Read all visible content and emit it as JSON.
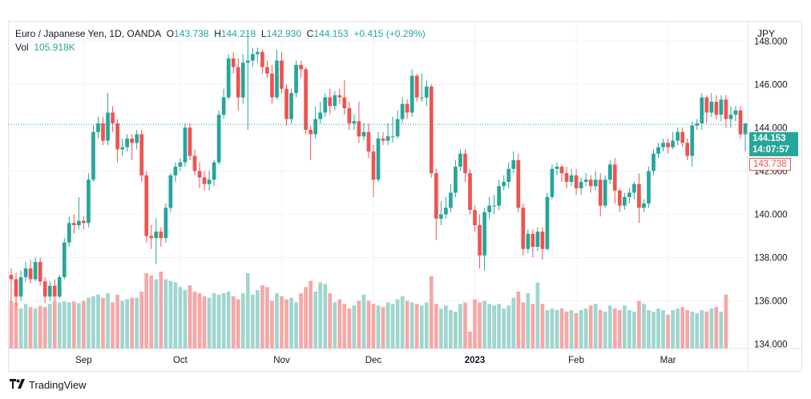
{
  "legend": {
    "symbol": "Euro / Japanese Yen, 1D, OANDA",
    "open_label": "O",
    "open": "143.738",
    "high_label": "H",
    "high": "144.218",
    "low_label": "L",
    "low": "142.930",
    "close_label": "C",
    "close": "144.153",
    "change": "+0.415 (+0.29%)",
    "vol_label": "Vol",
    "vol": "105.918K"
  },
  "axis": {
    "currency": "JPY"
  },
  "price_tags": {
    "last_price": "144.153",
    "countdown": "14:07:57",
    "open_price": "143.738"
  },
  "brand": {
    "name": "TradingView",
    "logo_icon": "tradingview-logo-icon"
  },
  "colors": {
    "up": "#26a69a",
    "down": "#ef5350",
    "up_volume": "#9fd6cf",
    "down_volume": "#f6a7a6",
    "grid": "#f0f3fa"
  },
  "chart_data": {
    "type": "candlestick",
    "title": "Euro / Japanese Yen, 1D, OANDA",
    "ylabel": "JPY",
    "ylim": [
      133.8,
      148.9
    ],
    "y_ticks": [
      "148.000",
      "146.000",
      "144.000",
      "142.000",
      "140.000",
      "138.000",
      "136.000",
      "134.000"
    ],
    "x_ticks": [
      "Sep",
      "Oct",
      "Nov",
      "Dec",
      "2023",
      "Feb",
      "Mar"
    ],
    "x_tick_positions": [
      15.5,
      35.5,
      56.5,
      75.5,
      96.5,
      117.5,
      136.5
    ],
    "last_price": 144.153,
    "open_price": 143.738,
    "candles": [
      [
        137.2,
        137.0,
        137.5,
        136.0
      ],
      [
        137.0,
        136.2,
        137.3,
        135.8
      ],
      [
        136.2,
        137.1,
        137.4,
        136.0
      ],
      [
        137.1,
        137.5,
        137.8,
        136.9
      ],
      [
        137.5,
        137.0,
        137.9,
        136.8
      ],
      [
        137.0,
        137.8,
        138.0,
        136.9
      ],
      [
        137.8,
        136.9,
        138.0,
        136.7
      ],
      [
        136.9,
        136.2,
        137.1,
        135.9
      ],
      [
        136.2,
        136.7,
        136.9,
        136.0
      ],
      [
        136.7,
        136.2,
        137.0,
        136.0
      ],
      [
        136.2,
        137.1,
        137.2,
        136.1
      ],
      [
        137.1,
        138.7,
        138.9,
        137.0
      ],
      [
        138.7,
        139.6,
        139.9,
        138.5
      ],
      [
        139.6,
        139.5,
        140.0,
        139.1
      ],
      [
        139.5,
        139.7,
        140.8,
        139.3
      ],
      [
        139.7,
        139.6,
        139.9,
        139.3
      ],
      [
        139.6,
        141.6,
        141.9,
        139.4
      ],
      [
        141.6,
        143.8,
        144.1,
        141.5
      ],
      [
        143.8,
        144.2,
        144.5,
        143.5
      ],
      [
        144.2,
        143.4,
        144.5,
        143.2
      ],
      [
        143.4,
        144.7,
        145.6,
        143.2
      ],
      [
        144.7,
        144.2,
        145.0,
        143.8
      ],
      [
        144.2,
        143.0,
        144.4,
        142.4
      ],
      [
        143.0,
        143.1,
        143.5,
        142.7
      ],
      [
        143.1,
        143.5,
        143.7,
        142.9
      ],
      [
        143.5,
        143.3,
        143.7,
        142.5
      ],
      [
        143.3,
        143.7,
        143.9,
        143.0
      ],
      [
        143.7,
        141.8,
        143.9,
        141.5
      ],
      [
        141.8,
        139.0,
        142.0,
        138.7
      ],
      [
        139.0,
        138.9,
        139.5,
        138.4
      ],
      [
        138.9,
        139.2,
        139.8,
        137.7
      ],
      [
        139.2,
        138.9,
        139.4,
        138.5
      ],
      [
        138.9,
        140.3,
        140.5,
        138.7
      ],
      [
        140.3,
        141.8,
        141.9,
        140.1
      ],
      [
        141.8,
        142.2,
        142.4,
        141.5
      ],
      [
        142.2,
        142.4,
        142.6,
        142.0
      ],
      [
        142.4,
        144.0,
        144.2,
        142.2
      ],
      [
        144.0,
        142.7,
        144.2,
        142.5
      ],
      [
        142.7,
        142.0,
        143.0,
        141.8
      ],
      [
        142.0,
        141.7,
        142.4,
        141.2
      ],
      [
        141.7,
        141.4,
        142.0,
        141.1
      ],
      [
        141.4,
        141.6,
        142.0,
        141.1
      ],
      [
        141.6,
        142.4,
        142.5,
        141.3
      ],
      [
        142.4,
        144.6,
        144.8,
        142.3
      ],
      [
        144.6,
        145.4,
        145.8,
        144.4
      ],
      [
        145.4,
        147.2,
        147.4,
        145.3
      ],
      [
        147.2,
        146.8,
        147.5,
        146.5
      ],
      [
        146.8,
        145.4,
        147.2,
        144.8
      ],
      [
        145.4,
        147.0,
        147.4,
        145.1
      ],
      [
        147.0,
        147.1,
        148.4,
        143.9
      ],
      [
        147.1,
        147.4,
        147.7,
        146.8
      ],
      [
        147.4,
        147.5,
        147.7,
        147.0
      ],
      [
        147.5,
        146.8,
        147.6,
        146.5
      ],
      [
        146.8,
        146.5,
        147.1,
        146.3
      ],
      [
        146.5,
        145.4,
        146.9,
        145.1
      ],
      [
        145.4,
        147.1,
        147.6,
        145.3
      ],
      [
        147.1,
        145.8,
        147.5,
        145.6
      ],
      [
        145.8,
        144.4,
        146.0,
        144.1
      ],
      [
        144.4,
        145.6,
        145.8,
        144.2
      ],
      [
        145.6,
        146.9,
        147.1,
        145.4
      ],
      [
        146.9,
        146.7,
        147.1,
        146.3
      ],
      [
        146.7,
        143.9,
        146.8,
        143.7
      ],
      [
        143.9,
        143.7,
        144.1,
        142.5
      ],
      [
        143.7,
        144.4,
        145.0,
        143.5
      ],
      [
        144.4,
        144.7,
        145.2,
        144.2
      ],
      [
        144.7,
        145.4,
        145.6,
        144.5
      ],
      [
        145.4,
        145.0,
        145.8,
        144.6
      ],
      [
        145.0,
        145.5,
        145.7,
        144.8
      ],
      [
        145.5,
        145.4,
        145.8,
        145.1
      ],
      [
        145.4,
        144.9,
        146.2,
        144.6
      ],
      [
        144.9,
        144.2,
        145.2,
        143.9
      ],
      [
        144.2,
        144.3,
        144.6,
        143.9
      ],
      [
        144.3,
        143.6,
        145.2,
        143.3
      ],
      [
        143.6,
        143.8,
        144.2,
        143.4
      ],
      [
        143.8,
        142.9,
        144.2,
        142.6
      ],
      [
        142.9,
        141.6,
        143.2,
        140.8
      ],
      [
        141.6,
        143.5,
        143.8,
        141.5
      ],
      [
        143.5,
        143.4,
        143.8,
        143.2
      ],
      [
        143.4,
        143.6,
        144.2,
        143.2
      ],
      [
        143.6,
        143.6,
        144.5,
        143.3
      ],
      [
        143.6,
        144.4,
        144.8,
        143.5
      ],
      [
        144.4,
        145.1,
        145.4,
        144.2
      ],
      [
        145.1,
        144.7,
        145.3,
        144.4
      ],
      [
        144.7,
        146.4,
        146.7,
        144.5
      ],
      [
        146.4,
        145.4,
        146.5,
        145.2
      ],
      [
        145.4,
        145.4,
        146.5,
        145.2
      ],
      [
        145.4,
        145.9,
        146.2,
        145.0
      ],
      [
        145.9,
        141.9,
        146.0,
        141.7
      ],
      [
        141.9,
        139.8,
        142.1,
        138.8
      ],
      [
        139.8,
        140.0,
        140.6,
        139.5
      ],
      [
        140.0,
        140.3,
        140.8,
        139.8
      ],
      [
        140.3,
        141.0,
        141.4,
        140.1
      ],
      [
        141.0,
        142.2,
        142.5,
        140.8
      ],
      [
        142.2,
        142.8,
        143.0,
        142.0
      ],
      [
        142.8,
        141.9,
        143.0,
        141.5
      ],
      [
        141.9,
        140.2,
        142.1,
        140.0
      ],
      [
        140.2,
        139.5,
        140.4,
        139.2
      ],
      [
        139.5,
        138.1,
        140.0,
        137.5
      ],
      [
        138.1,
        140.1,
        140.3,
        137.4
      ],
      [
        140.1,
        140.4,
        140.8,
        139.8
      ],
      [
        140.4,
        140.4,
        140.9,
        140.0
      ],
      [
        140.4,
        141.3,
        141.6,
        140.2
      ],
      [
        141.3,
        141.5,
        141.8,
        141.1
      ],
      [
        141.5,
        142.1,
        142.4,
        141.2
      ],
      [
        142.1,
        142.5,
        142.9,
        141.9
      ],
      [
        142.5,
        140.3,
        142.8,
        140.1
      ],
      [
        140.3,
        138.4,
        140.5,
        138.1
      ],
      [
        138.4,
        139.1,
        139.3,
        138.2
      ],
      [
        139.1,
        138.5,
        139.3,
        138.0
      ],
      [
        138.5,
        139.2,
        139.4,
        138.3
      ],
      [
        139.2,
        138.4,
        139.4,
        137.9
      ],
      [
        138.4,
        140.8,
        141.0,
        138.3
      ],
      [
        140.8,
        142.1,
        142.3,
        140.7
      ],
      [
        142.1,
        142.2,
        142.4,
        141.8
      ],
      [
        142.2,
        141.9,
        142.3,
        141.5
      ],
      [
        141.9,
        141.5,
        142.2,
        141.2
      ],
      [
        141.5,
        141.8,
        142.1,
        141.3
      ],
      [
        141.8,
        141.2,
        142.1,
        140.9
      ],
      [
        141.2,
        141.5,
        141.7,
        140.9
      ],
      [
        141.5,
        141.6,
        141.9,
        141.3
      ],
      [
        141.6,
        141.3,
        141.8,
        141.0
      ],
      [
        141.3,
        141.6,
        142.0,
        141.1
      ],
      [
        141.6,
        140.4,
        141.9,
        139.9
      ],
      [
        140.4,
        141.6,
        141.8,
        140.3
      ],
      [
        141.6,
        142.3,
        142.5,
        141.4
      ],
      [
        142.3,
        141.1,
        142.6,
        140.5
      ],
      [
        141.1,
        140.4,
        141.2,
        140.1
      ],
      [
        140.4,
        140.8,
        141.0,
        140.2
      ],
      [
        140.8,
        141.0,
        141.2,
        140.5
      ],
      [
        141.0,
        141.4,
        141.5,
        140.7
      ],
      [
        141.4,
        140.3,
        141.9,
        139.6
      ],
      [
        140.3,
        140.5,
        140.7,
        140.1
      ],
      [
        140.5,
        142.0,
        142.2,
        140.3
      ],
      [
        142.0,
        142.8,
        143.0,
        141.8
      ],
      [
        142.8,
        143.1,
        143.3,
        142.6
      ],
      [
        143.1,
        143.3,
        143.5,
        142.9
      ],
      [
        143.3,
        143.1,
        143.5,
        142.8
      ],
      [
        143.1,
        143.4,
        143.8,
        143.0
      ],
      [
        143.4,
        143.8,
        144.0,
        143.2
      ],
      [
        143.8,
        143.3,
        144.0,
        143.1
      ],
      [
        143.3,
        142.7,
        143.5,
        142.5
      ],
      [
        142.7,
        144.1,
        144.3,
        142.2
      ],
      [
        144.1,
        144.2,
        144.4,
        143.9
      ],
      [
        144.2,
        145.4,
        145.6,
        143.9
      ],
      [
        145.4,
        144.7,
        145.5,
        144.2
      ],
      [
        144.7,
        145.2,
        145.6,
        144.5
      ],
      [
        145.2,
        144.6,
        145.5,
        144.4
      ],
      [
        144.6,
        145.3,
        145.5,
        144.3
      ],
      [
        145.3,
        144.4,
        145.5,
        144.0
      ],
      [
        144.4,
        144.6,
        145.0,
        144.0
      ],
      [
        144.6,
        144.8,
        145.0,
        144.3
      ],
      [
        144.8,
        143.7,
        145.0,
        143.5
      ],
      [
        143.7,
        144.2,
        144.2,
        142.9
      ]
    ],
    "volume": [
      0.62,
      0.6,
      0.52,
      0.58,
      0.54,
      0.52,
      0.55,
      0.54,
      0.58,
      0.62,
      0.6,
      0.61,
      0.6,
      0.61,
      0.59,
      0.62,
      0.66,
      0.68,
      0.7,
      0.66,
      0.72,
      0.6,
      0.7,
      0.62,
      0.64,
      0.66,
      0.66,
      0.74,
      0.98,
      0.95,
      0.9,
      1.0,
      0.9,
      0.88,
      0.86,
      0.8,
      0.76,
      0.82,
      0.74,
      0.72,
      0.68,
      0.66,
      0.72,
      0.7,
      0.72,
      0.74,
      0.68,
      0.64,
      0.72,
      0.98,
      0.7,
      0.76,
      0.82,
      0.8,
      0.62,
      0.72,
      0.68,
      0.64,
      0.66,
      0.6,
      0.72,
      0.8,
      0.88,
      0.74,
      0.86,
      0.84,
      0.72,
      0.6,
      0.64,
      0.58,
      0.52,
      0.56,
      0.62,
      0.7,
      0.62,
      0.58,
      0.56,
      0.54,
      0.6,
      0.58,
      0.64,
      0.68,
      0.62,
      0.6,
      0.58,
      0.56,
      0.6,
      0.94,
      0.58,
      0.52,
      0.56,
      0.5,
      0.48,
      0.58,
      0.6,
      0.22,
      0.64,
      0.6,
      0.62,
      0.58,
      0.56,
      0.58,
      0.52,
      0.56,
      0.66,
      0.74,
      0.6,
      0.72,
      0.58,
      0.86,
      0.58,
      0.5,
      0.52,
      0.5,
      0.52,
      0.48,
      0.5,
      0.46,
      0.5,
      0.52,
      0.56,
      0.58,
      0.5,
      0.48,
      0.56,
      0.52,
      0.5,
      0.56,
      0.5,
      0.48,
      0.62,
      0.58,
      0.5,
      0.48,
      0.52,
      0.5,
      0.44,
      0.5,
      0.52,
      0.54,
      0.5,
      0.48,
      0.46,
      0.5,
      0.48,
      0.52,
      0.54,
      0.48,
      0.7
    ]
  }
}
